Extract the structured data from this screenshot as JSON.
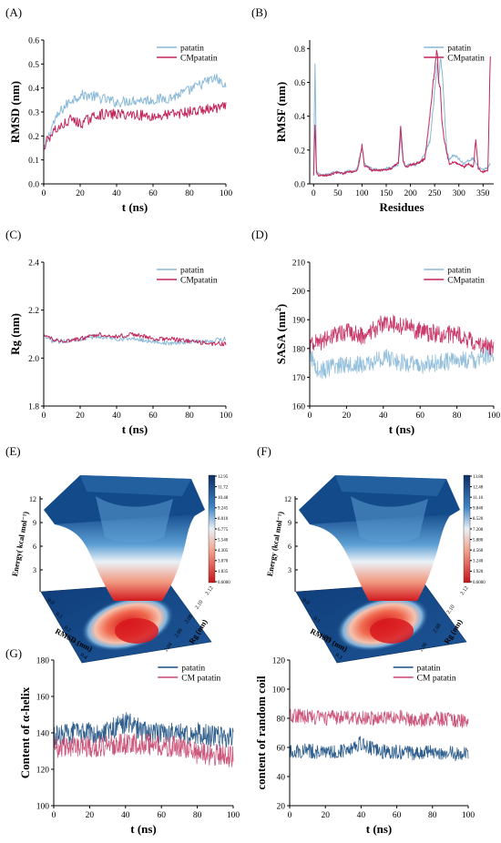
{
  "colors": {
    "light_blue": "#89b9d8",
    "crimson": "#c2265a",
    "navy": "#1b4f82",
    "pink": "#c8466f"
  },
  "chart_data": [
    {
      "panel": "(A)",
      "type": "line",
      "xlabel": "t (ns)",
      "ylabel": "RMSD (nm)",
      "xlim": [
        0,
        100
      ],
      "ylim": [
        0.0,
        0.6
      ],
      "xticks": [
        0,
        20,
        40,
        60,
        80,
        100
      ],
      "yticks": [
        0.0,
        0.1,
        0.2,
        0.3,
        0.4,
        0.5,
        0.6
      ],
      "ytick_labels": [
        "0.0",
        "0.1",
        "0.2",
        "0.3",
        "0.4",
        "0.5",
        "0.6"
      ],
      "legend": "top-right",
      "series": [
        {
          "name": "patatin",
          "color": "#89b9d8",
          "x": [
            0,
            2,
            5,
            10,
            15,
            20,
            25,
            30,
            40,
            50,
            60,
            70,
            80,
            85,
            90,
            95,
            100
          ],
          "y": [
            0.13,
            0.18,
            0.25,
            0.31,
            0.35,
            0.37,
            0.37,
            0.36,
            0.34,
            0.35,
            0.35,
            0.36,
            0.39,
            0.41,
            0.43,
            0.44,
            0.4
          ]
        },
        {
          "name": "CMpatatin",
          "color": "#c2265a",
          "x": [
            0,
            2,
            5,
            10,
            15,
            20,
            25,
            30,
            40,
            50,
            60,
            70,
            80,
            90,
            100
          ],
          "y": [
            0.16,
            0.18,
            0.22,
            0.24,
            0.27,
            0.25,
            0.27,
            0.29,
            0.29,
            0.29,
            0.28,
            0.29,
            0.3,
            0.31,
            0.32
          ]
        }
      ]
    },
    {
      "panel": "(B)",
      "type": "line",
      "xlabel": "Residues",
      "ylabel": "RMSF (nm)",
      "xlim": [
        -8,
        372
      ],
      "ylim": [
        0.0,
        0.85
      ],
      "xticks": [
        0,
        50,
        100,
        150,
        200,
        250,
        300,
        350
      ],
      "yticks": [
        0.0,
        0.2,
        0.4,
        0.6,
        0.8
      ],
      "ytick_labels": [
        "0.0",
        "0.2",
        "0.4",
        "0.6",
        "0.8"
      ],
      "legend": "top-right",
      "series": [
        {
          "name": "patatin",
          "color": "#89b9d8",
          "x": [
            0,
            3,
            6,
            10,
            20,
            30,
            40,
            50,
            60,
            70,
            80,
            90,
            95,
            100,
            105,
            120,
            140,
            160,
            175,
            180,
            185,
            190,
            200,
            210,
            220,
            230,
            240,
            245,
            250,
            255,
            258,
            262,
            265,
            270,
            275,
            280,
            290,
            300,
            310,
            320,
            330,
            340,
            350,
            360,
            365
          ],
          "y": [
            0.05,
            0.72,
            0.08,
            0.06,
            0.05,
            0.06,
            0.07,
            0.07,
            0.06,
            0.08,
            0.07,
            0.09,
            0.16,
            0.21,
            0.12,
            0.09,
            0.08,
            0.1,
            0.11,
            0.28,
            0.13,
            0.1,
            0.12,
            0.11,
            0.13,
            0.18,
            0.25,
            0.38,
            0.55,
            0.72,
            0.6,
            0.75,
            0.68,
            0.45,
            0.2,
            0.15,
            0.17,
            0.15,
            0.12,
            0.14,
            0.15,
            0.1,
            0.08,
            0.1,
            0.12
          ]
        },
        {
          "name": "CMpatatin",
          "color": "#c2265a",
          "x": [
            0,
            3,
            6,
            10,
            20,
            30,
            40,
            50,
            60,
            70,
            80,
            90,
            95,
            100,
            105,
            120,
            140,
            160,
            175,
            180,
            185,
            190,
            200,
            210,
            220,
            230,
            240,
            245,
            250,
            255,
            258,
            262,
            265,
            270,
            275,
            280,
            290,
            300,
            310,
            320,
            330,
            335,
            340,
            350,
            360,
            365
          ],
          "y": [
            0.05,
            0.36,
            0.07,
            0.05,
            0.05,
            0.05,
            0.06,
            0.07,
            0.06,
            0.07,
            0.07,
            0.08,
            0.14,
            0.23,
            0.11,
            0.08,
            0.08,
            0.09,
            0.13,
            0.34,
            0.14,
            0.1,
            0.11,
            0.12,
            0.13,
            0.15,
            0.4,
            0.55,
            0.68,
            0.8,
            0.62,
            0.55,
            0.38,
            0.26,
            0.18,
            0.12,
            0.13,
            0.12,
            0.1,
            0.12,
            0.1,
            0.26,
            0.09,
            0.07,
            0.08,
            0.76
          ]
        }
      ]
    },
    {
      "panel": "(C)",
      "type": "line",
      "xlabel": "t (ns)",
      "ylabel": "Rg (nm)",
      "xlim": [
        0,
        100
      ],
      "ylim": [
        1.8,
        2.4
      ],
      "xticks": [
        0,
        20,
        40,
        60,
        80,
        100
      ],
      "yticks": [
        1.8,
        2.0,
        2.2,
        2.4
      ],
      "ytick_labels": [
        "1.8",
        "2.0",
        "2.2",
        "2.4"
      ],
      "legend": "top-right",
      "series": [
        {
          "name": "patatin",
          "color": "#89b9d8",
          "x": [
            0,
            5,
            10,
            20,
            30,
            40,
            50,
            60,
            70,
            80,
            90,
            100
          ],
          "y": [
            2.09,
            2.07,
            2.07,
            2.08,
            2.09,
            2.08,
            2.08,
            2.07,
            2.06,
            2.07,
            2.07,
            2.08
          ]
        },
        {
          "name": "CMpatatin",
          "color": "#c2265a",
          "x": [
            0,
            5,
            10,
            20,
            30,
            40,
            50,
            60,
            70,
            80,
            90,
            100
          ],
          "y": [
            2.1,
            2.08,
            2.07,
            2.08,
            2.1,
            2.09,
            2.1,
            2.08,
            2.08,
            2.07,
            2.06,
            2.06
          ]
        }
      ]
    },
    {
      "panel": "(D)",
      "type": "line",
      "xlabel": "t (ns)",
      "ylabel_main": "SASA (nm",
      "ylabel_sup": "2",
      "ylabel_end": ")",
      "xlim": [
        0,
        100
      ],
      "ylim": [
        160,
        210
      ],
      "xticks": [
        0,
        20,
        40,
        60,
        80,
        100
      ],
      "yticks": [
        160,
        170,
        180,
        190,
        200,
        210
      ],
      "ytick_labels": [
        "160",
        "170",
        "180",
        "190",
        "200",
        "210"
      ],
      "legend": "top-right",
      "series": [
        {
          "name": "patatin",
          "color": "#89b9d8",
          "x": [
            0,
            5,
            10,
            20,
            30,
            40,
            50,
            60,
            70,
            80,
            90,
            100
          ],
          "y": [
            178,
            172,
            173,
            175,
            174,
            177,
            175,
            174,
            175,
            176,
            176,
            178
          ]
        },
        {
          "name": "CMpatatin",
          "color": "#c2265a",
          "x": [
            0,
            5,
            10,
            20,
            30,
            40,
            50,
            60,
            70,
            80,
            90,
            100
          ],
          "y": [
            181,
            182,
            184,
            186,
            184,
            189,
            188,
            186,
            185,
            185,
            182,
            180
          ]
        }
      ]
    },
    {
      "panel": "(G)",
      "type": "line",
      "xlabel": "t (ns)",
      "ylabel": "Content of α-helix",
      "xlim": [
        0,
        100
      ],
      "ylim": [
        100,
        180
      ],
      "xticks": [
        0,
        20,
        40,
        60,
        80,
        100
      ],
      "yticks": [
        100,
        120,
        140,
        160,
        180
      ],
      "ytick_labels": [
        "100",
        "120",
        "140",
        "160",
        "180"
      ],
      "legend": "top-right",
      "series": [
        {
          "name": "patatin",
          "color": "#1b4f82",
          "x": [
            0,
            10,
            20,
            30,
            40,
            50,
            60,
            70,
            80,
            90,
            100
          ],
          "y": [
            138,
            140,
            140,
            141,
            146,
            141,
            140,
            139,
            140,
            138,
            137
          ]
        },
        {
          "name": "CM patatin",
          "color": "#c8466f",
          "x": [
            0,
            10,
            20,
            30,
            40,
            50,
            60,
            70,
            80,
            90,
            100
          ],
          "y": [
            132,
            133,
            132,
            133,
            134,
            134,
            133,
            132,
            129,
            128,
            127
          ]
        }
      ]
    },
    {
      "panel": "",
      "type": "line",
      "xlabel": "t (ns)",
      "ylabel": "content of random coil",
      "xlim": [
        0,
        100
      ],
      "ylim": [
        20,
        120
      ],
      "xticks": [
        0,
        20,
        40,
        60,
        80,
        100
      ],
      "yticks": [
        20,
        40,
        60,
        80,
        100,
        120
      ],
      "ytick_labels": [
        "20",
        "40",
        "60",
        "80",
        "100",
        "120"
      ],
      "legend": "top-right",
      "series": [
        {
          "name": "patatin",
          "color": "#1b4f82",
          "x": [
            0,
            10,
            20,
            30,
            40,
            50,
            60,
            70,
            80,
            90,
            100
          ],
          "y": [
            57,
            58,
            56,
            58,
            63,
            57,
            57,
            56,
            57,
            56,
            55
          ]
        },
        {
          "name": "CM patatin",
          "color": "#c8466f",
          "x": [
            0,
            10,
            20,
            30,
            40,
            50,
            60,
            70,
            80,
            90,
            100
          ],
          "y": [
            82,
            81,
            80,
            81,
            80,
            80,
            81,
            79,
            80,
            79,
            78
          ]
        }
      ]
    }
  ],
  "landscapes": [
    {
      "panel": "(E)",
      "type": "surface",
      "zlabel": "Energy( kcal mol⁻¹)",
      "zticks": [
        "12",
        "9",
        "6",
        "3"
      ],
      "xlabel": "RMSD (nm)",
      "ylabel": "Rg (nm)",
      "xticks": [
        "0.0",
        "0.1",
        "0.2",
        "0.3",
        "0.4"
      ],
      "yticks": [
        "2.04",
        "2.06",
        "2.08",
        "2.10",
        "2.12"
      ],
      "colorbar": [
        "12.95",
        "11.72",
        "10.48",
        "9.245",
        "8.010",
        "6.775",
        "5.540",
        "4.305",
        "3.070",
        "1.835",
        "0.6000"
      ]
    },
    {
      "panel": "(F)",
      "type": "surface",
      "zlabel": "Energy (kcal mol⁻¹)",
      "zticks": [
        "12",
        "9",
        "6",
        "3"
      ],
      "xlabel": "RMSD (nm)",
      "ylabel": "Rg (nm)",
      "xticks": [
        "0.0",
        "0.1",
        "0.2",
        "0.3"
      ],
      "yticks": [
        "2.06",
        "2.08",
        "2.10",
        "2.12"
      ],
      "colorbar": [
        "13.80",
        "12.48",
        "11.16",
        "9.840",
        "8.520",
        "7.200",
        "5.880",
        "4.560",
        "3.240",
        "1.920",
        "0.6000"
      ]
    }
  ]
}
